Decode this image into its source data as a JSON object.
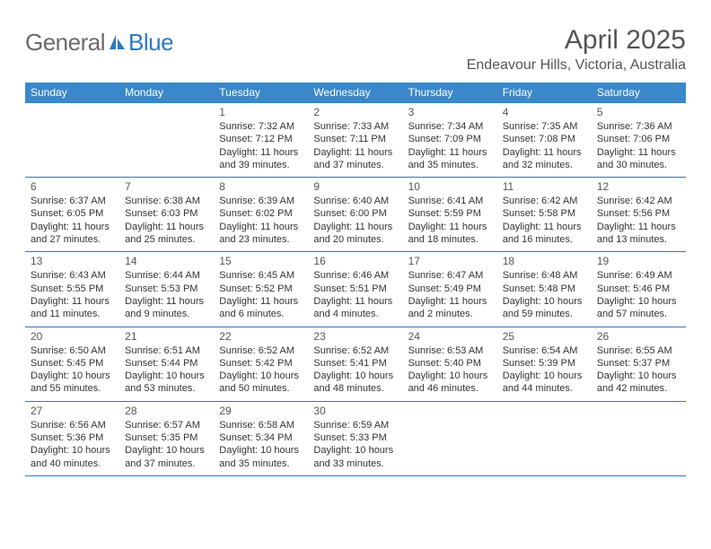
{
  "brand": {
    "part1": "General",
    "part2": "Blue"
  },
  "title": "April 2025",
  "subtitle": "Endeavour Hills, Victoria, Australia",
  "colors": {
    "header_bg": "#3a87c9",
    "border": "#2d79c0",
    "page_bg": "#ffffff",
    "title_color": "#555555",
    "logo_gray": "#6a6a6a",
    "logo_blue": "#2d79c0",
    "text_color": "#333333"
  },
  "weekdays": [
    "Sunday",
    "Monday",
    "Tuesday",
    "Wednesday",
    "Thursday",
    "Friday",
    "Saturday"
  ],
  "weeks": [
    [
      {
        "blank": true
      },
      {
        "blank": true
      },
      {
        "day": "1",
        "sunrise": "Sunrise: 7:32 AM",
        "sunset": "Sunset: 7:12 PM",
        "daylight": "Daylight: 11 hours and 39 minutes."
      },
      {
        "day": "2",
        "sunrise": "Sunrise: 7:33 AM",
        "sunset": "Sunset: 7:11 PM",
        "daylight": "Daylight: 11 hours and 37 minutes."
      },
      {
        "day": "3",
        "sunrise": "Sunrise: 7:34 AM",
        "sunset": "Sunset: 7:09 PM",
        "daylight": "Daylight: 11 hours and 35 minutes."
      },
      {
        "day": "4",
        "sunrise": "Sunrise: 7:35 AM",
        "sunset": "Sunset: 7:08 PM",
        "daylight": "Daylight: 11 hours and 32 minutes."
      },
      {
        "day": "5",
        "sunrise": "Sunrise: 7:36 AM",
        "sunset": "Sunset: 7:06 PM",
        "daylight": "Daylight: 11 hours and 30 minutes."
      }
    ],
    [
      {
        "day": "6",
        "sunrise": "Sunrise: 6:37 AM",
        "sunset": "Sunset: 6:05 PM",
        "daylight": "Daylight: 11 hours and 27 minutes."
      },
      {
        "day": "7",
        "sunrise": "Sunrise: 6:38 AM",
        "sunset": "Sunset: 6:03 PM",
        "daylight": "Daylight: 11 hours and 25 minutes."
      },
      {
        "day": "8",
        "sunrise": "Sunrise: 6:39 AM",
        "sunset": "Sunset: 6:02 PM",
        "daylight": "Daylight: 11 hours and 23 minutes."
      },
      {
        "day": "9",
        "sunrise": "Sunrise: 6:40 AM",
        "sunset": "Sunset: 6:00 PM",
        "daylight": "Daylight: 11 hours and 20 minutes."
      },
      {
        "day": "10",
        "sunrise": "Sunrise: 6:41 AM",
        "sunset": "Sunset: 5:59 PM",
        "daylight": "Daylight: 11 hours and 18 minutes."
      },
      {
        "day": "11",
        "sunrise": "Sunrise: 6:42 AM",
        "sunset": "Sunset: 5:58 PM",
        "daylight": "Daylight: 11 hours and 16 minutes."
      },
      {
        "day": "12",
        "sunrise": "Sunrise: 6:42 AM",
        "sunset": "Sunset: 5:56 PM",
        "daylight": "Daylight: 11 hours and 13 minutes."
      }
    ],
    [
      {
        "day": "13",
        "sunrise": "Sunrise: 6:43 AM",
        "sunset": "Sunset: 5:55 PM",
        "daylight": "Daylight: 11 hours and 11 minutes."
      },
      {
        "day": "14",
        "sunrise": "Sunrise: 6:44 AM",
        "sunset": "Sunset: 5:53 PM",
        "daylight": "Daylight: 11 hours and 9 minutes."
      },
      {
        "day": "15",
        "sunrise": "Sunrise: 6:45 AM",
        "sunset": "Sunset: 5:52 PM",
        "daylight": "Daylight: 11 hours and 6 minutes."
      },
      {
        "day": "16",
        "sunrise": "Sunrise: 6:46 AM",
        "sunset": "Sunset: 5:51 PM",
        "daylight": "Daylight: 11 hours and 4 minutes."
      },
      {
        "day": "17",
        "sunrise": "Sunrise: 6:47 AM",
        "sunset": "Sunset: 5:49 PM",
        "daylight": "Daylight: 11 hours and 2 minutes."
      },
      {
        "day": "18",
        "sunrise": "Sunrise: 6:48 AM",
        "sunset": "Sunset: 5:48 PM",
        "daylight": "Daylight: 10 hours and 59 minutes."
      },
      {
        "day": "19",
        "sunrise": "Sunrise: 6:49 AM",
        "sunset": "Sunset: 5:46 PM",
        "daylight": "Daylight: 10 hours and 57 minutes."
      }
    ],
    [
      {
        "day": "20",
        "sunrise": "Sunrise: 6:50 AM",
        "sunset": "Sunset: 5:45 PM",
        "daylight": "Daylight: 10 hours and 55 minutes."
      },
      {
        "day": "21",
        "sunrise": "Sunrise: 6:51 AM",
        "sunset": "Sunset: 5:44 PM",
        "daylight": "Daylight: 10 hours and 53 minutes."
      },
      {
        "day": "22",
        "sunrise": "Sunrise: 6:52 AM",
        "sunset": "Sunset: 5:42 PM",
        "daylight": "Daylight: 10 hours and 50 minutes."
      },
      {
        "day": "23",
        "sunrise": "Sunrise: 6:52 AM",
        "sunset": "Sunset: 5:41 PM",
        "daylight": "Daylight: 10 hours and 48 minutes."
      },
      {
        "day": "24",
        "sunrise": "Sunrise: 6:53 AM",
        "sunset": "Sunset: 5:40 PM",
        "daylight": "Daylight: 10 hours and 46 minutes."
      },
      {
        "day": "25",
        "sunrise": "Sunrise: 6:54 AM",
        "sunset": "Sunset: 5:39 PM",
        "daylight": "Daylight: 10 hours and 44 minutes."
      },
      {
        "day": "26",
        "sunrise": "Sunrise: 6:55 AM",
        "sunset": "Sunset: 5:37 PM",
        "daylight": "Daylight: 10 hours and 42 minutes."
      }
    ],
    [
      {
        "day": "27",
        "sunrise": "Sunrise: 6:56 AM",
        "sunset": "Sunset: 5:36 PM",
        "daylight": "Daylight: 10 hours and 40 minutes."
      },
      {
        "day": "28",
        "sunrise": "Sunrise: 6:57 AM",
        "sunset": "Sunset: 5:35 PM",
        "daylight": "Daylight: 10 hours and 37 minutes."
      },
      {
        "day": "29",
        "sunrise": "Sunrise: 6:58 AM",
        "sunset": "Sunset: 5:34 PM",
        "daylight": "Daylight: 10 hours and 35 minutes."
      },
      {
        "day": "30",
        "sunrise": "Sunrise: 6:59 AM",
        "sunset": "Sunset: 5:33 PM",
        "daylight": "Daylight: 10 hours and 33 minutes."
      },
      {
        "blank": true
      },
      {
        "blank": true
      },
      {
        "blank": true
      }
    ]
  ]
}
